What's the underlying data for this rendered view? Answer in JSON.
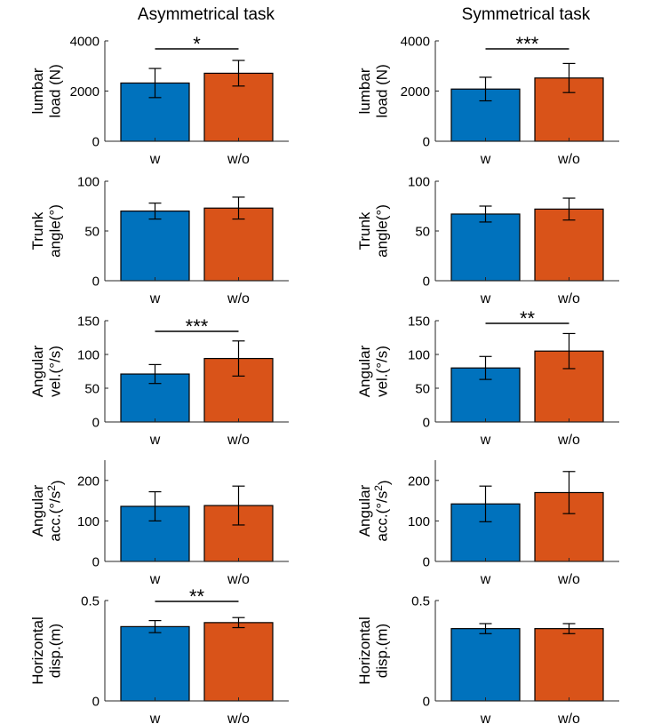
{
  "figure": {
    "column_titles": [
      "Asymmetrical task",
      "Symmetrical task"
    ],
    "colors": {
      "with": "#0072BD",
      "without": "#D95319",
      "axis": "#262626",
      "bar_edge": "#000000"
    }
  },
  "chart_data": [
    {
      "type": "bar",
      "column": 0,
      "row": 0,
      "title": "Asymmetrical task",
      "ylabel": [
        "lumbar",
        "load (N)"
      ],
      "ylim": [
        0,
        4000
      ],
      "yticks": [
        0,
        2000,
        4000
      ],
      "categories": [
        "w",
        "w/o"
      ],
      "values": [
        2320,
        2710
      ],
      "errors": [
        580,
        510
      ],
      "significance": "*"
    },
    {
      "type": "bar",
      "column": 1,
      "row": 0,
      "title": "Symmetrical task",
      "ylabel": [
        "lumbar",
        "load (N)"
      ],
      "ylim": [
        0,
        4000
      ],
      "yticks": [
        0,
        2000,
        4000
      ],
      "categories": [
        "w",
        "w/o"
      ],
      "values": [
        2080,
        2520
      ],
      "errors": [
        470,
        580
      ],
      "significance": "***"
    },
    {
      "type": "bar",
      "column": 0,
      "row": 1,
      "ylabel": [
        "Trunk",
        "angle(°)"
      ],
      "ylim": [
        0,
        100
      ],
      "yticks": [
        0,
        50,
        100
      ],
      "categories": [
        "w",
        "w/o"
      ],
      "values": [
        70,
        73
      ],
      "errors": [
        8,
        11
      ],
      "significance": ""
    },
    {
      "type": "bar",
      "column": 1,
      "row": 1,
      "ylabel": [
        "Trunk",
        "angle(°)"
      ],
      "ylim": [
        0,
        100
      ],
      "yticks": [
        0,
        50,
        100
      ],
      "categories": [
        "w",
        "w/o"
      ],
      "values": [
        67,
        72
      ],
      "errors": [
        8,
        11
      ],
      "significance": ""
    },
    {
      "type": "bar",
      "column": 0,
      "row": 2,
      "ylabel": [
        "Angular",
        "vel.(°/s)"
      ],
      "ylim": [
        0,
        150
      ],
      "yticks": [
        0,
        50,
        100,
        150
      ],
      "categories": [
        "w",
        "w/o"
      ],
      "values": [
        71,
        94
      ],
      "errors": [
        14,
        26
      ],
      "significance": "***"
    },
    {
      "type": "bar",
      "column": 1,
      "row": 2,
      "ylabel": [
        "Angular",
        "vel.(°/s)"
      ],
      "ylim": [
        0,
        150
      ],
      "yticks": [
        0,
        50,
        100,
        150
      ],
      "categories": [
        "w",
        "w/o"
      ],
      "values": [
        80,
        105
      ],
      "errors": [
        17,
        26
      ],
      "significance": "**"
    },
    {
      "type": "bar",
      "column": 0,
      "row": 3,
      "ylabel": [
        "Angular",
        "acc.(°/s",
        "2",
        ")"
      ],
      "ylim": [
        0,
        250
      ],
      "yticks": [
        0,
        100,
        200
      ],
      "categories": [
        "w",
        "w/o"
      ],
      "values": [
        136,
        138
      ],
      "errors": [
        36,
        48
      ],
      "significance": ""
    },
    {
      "type": "bar",
      "column": 1,
      "row": 3,
      "ylabel": [
        "Angular",
        "acc.(°/s",
        "2",
        ")"
      ],
      "ylim": [
        0,
        250
      ],
      "yticks": [
        0,
        100,
        200
      ],
      "categories": [
        "w",
        "w/o"
      ],
      "values": [
        142,
        170
      ],
      "errors": [
        44,
        52
      ],
      "significance": ""
    },
    {
      "type": "bar",
      "column": 0,
      "row": 4,
      "ylabel": [
        "Horizontal",
        "disp.(m)"
      ],
      "ylim": [
        0,
        0.5
      ],
      "yticks": [
        0,
        0.5
      ],
      "categories": [
        "w",
        "w/o"
      ],
      "values": [
        0.37,
        0.39
      ],
      "errors": [
        0.03,
        0.025
      ],
      "significance": "**"
    },
    {
      "type": "bar",
      "column": 1,
      "row": 4,
      "ylabel": [
        "Horizontal",
        "disp.(m)"
      ],
      "ylim": [
        0,
        0.5
      ],
      "yticks": [
        0,
        0.5
      ],
      "categories": [
        "w",
        "w/o"
      ],
      "values": [
        0.36,
        0.36
      ],
      "errors": [
        0.025,
        0.025
      ],
      "significance": ""
    }
  ]
}
